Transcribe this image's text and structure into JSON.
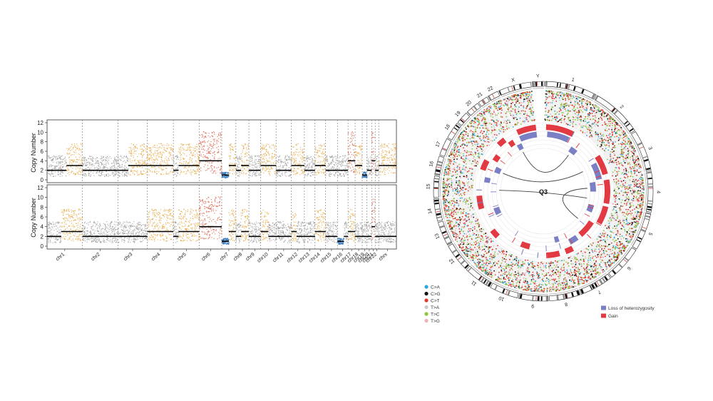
{
  "chart_data": [
    {
      "type": "scatter",
      "title": "",
      "ylabel": "Copy Number",
      "ylim": [
        0,
        12
      ],
      "yticks": [
        0,
        2,
        4,
        6,
        8,
        10,
        12
      ],
      "chromosomes": [
        "chr1",
        "chr2",
        "chr3",
        "chr4",
        "chr5",
        "chr6",
        "chr7",
        "chr8",
        "chr9",
        "chr10",
        "chr11",
        "chr12",
        "chr13",
        "chr14",
        "chr15",
        "chr16",
        "chr17",
        "chr18",
        "chr19",
        "chr20",
        "chr21",
        "chr22",
        "chrx"
      ],
      "chromosome_widths": [
        3.0,
        3.0,
        2.5,
        2.2,
        2.2,
        1.9,
        1.2,
        1.1,
        1.0,
        1.3,
        1.3,
        1.1,
        0.9,
        0.9,
        1.0,
        0.9,
        0.6,
        0.6,
        0.4,
        0.4,
        0.3,
        0.3,
        1.5
      ],
      "panels": [
        {
          "name": "top",
          "segments": [
            {
              "chr": "chr1",
              "start": 0,
              "end": 0.55,
              "cn": 2
            },
            {
              "chr": "chr1",
              "start": 0.55,
              "end": 1,
              "cn": 3
            },
            {
              "chr": "chr2",
              "start": 0,
              "end": 1,
              "cn": 2
            },
            {
              "chr": "chr3",
              "start": 0,
              "end": 0.35,
              "cn": 2
            },
            {
              "chr": "chr3",
              "start": 0.35,
              "end": 1,
              "cn": 3
            },
            {
              "chr": "chr4",
              "start": 0,
              "end": 1,
              "cn": 3
            },
            {
              "chr": "chr5",
              "start": 0,
              "end": 0.2,
              "cn": 2
            },
            {
              "chr": "chr5",
              "start": 0.2,
              "end": 1,
              "cn": 3
            },
            {
              "chr": "chr6",
              "start": 0,
              "end": 1,
              "cn": 4
            },
            {
              "chr": "chr7",
              "start": 0,
              "end": 0.5,
              "cn": 1
            },
            {
              "chr": "chr7",
              "start": 0.5,
              "end": 1,
              "cn": 3
            },
            {
              "chr": "chr8",
              "start": 0,
              "end": 0.4,
              "cn": 2
            },
            {
              "chr": "chr8",
              "start": 0.4,
              "end": 1,
              "cn": 3
            },
            {
              "chr": "chr9",
              "start": 0,
              "end": 1,
              "cn": 2
            },
            {
              "chr": "chr10",
              "start": 0,
              "end": 1,
              "cn": 3
            },
            {
              "chr": "chr11",
              "start": 0,
              "end": 1,
              "cn": 2
            },
            {
              "chr": "chr12",
              "start": 0,
              "end": 1,
              "cn": 3
            },
            {
              "chr": "chr13",
              "start": 0,
              "end": 1,
              "cn": 2
            },
            {
              "chr": "chr14",
              "start": 0,
              "end": 1,
              "cn": 3
            },
            {
              "chr": "chr15",
              "start": 0,
              "end": 1,
              "cn": 2
            },
            {
              "chr": "chr16",
              "start": 0,
              "end": 0.5,
              "cn": 2
            },
            {
              "chr": "chr16",
              "start": 0.5,
              "end": 1,
              "cn": 2
            },
            {
              "chr": "chr17",
              "start": 0,
              "end": 1,
              "cn": 4
            },
            {
              "chr": "chr18",
              "start": 0,
              "end": 1,
              "cn": 3
            },
            {
              "chr": "chr19",
              "start": 0,
              "end": 1,
              "cn": 1
            },
            {
              "chr": "chr20",
              "start": 0,
              "end": 1,
              "cn": 2
            },
            {
              "chr": "chr21",
              "start": 0,
              "end": 1,
              "cn": 4
            },
            {
              "chr": "chr22",
              "start": 0,
              "end": 1,
              "cn": 2
            },
            {
              "chr": "chrx",
              "start": 0,
              "end": 1,
              "cn": 3
            }
          ]
        },
        {
          "name": "bottom",
          "segments": [
            {
              "chr": "chr1",
              "start": 0,
              "end": 0.4,
              "cn": 2
            },
            {
              "chr": "chr1",
              "start": 0.4,
              "end": 1,
              "cn": 3
            },
            {
              "chr": "chr2",
              "start": 0,
              "end": 1,
              "cn": 2
            },
            {
              "chr": "chr3",
              "start": 0,
              "end": 1,
              "cn": 2
            },
            {
              "chr": "chr4",
              "start": 0,
              "end": 1,
              "cn": 3
            },
            {
              "chr": "chr5",
              "start": 0,
              "end": 0.2,
              "cn": 2
            },
            {
              "chr": "chr5",
              "start": 0.2,
              "end": 1,
              "cn": 3
            },
            {
              "chr": "chr6",
              "start": 0,
              "end": 1,
              "cn": 4
            },
            {
              "chr": "chr7",
              "start": 0,
              "end": 0.5,
              "cn": 1
            },
            {
              "chr": "chr7",
              "start": 0.5,
              "end": 1,
              "cn": 3
            },
            {
              "chr": "chr8",
              "start": 0,
              "end": 0.4,
              "cn": 2
            },
            {
              "chr": "chr8",
              "start": 0.4,
              "end": 1,
              "cn": 3
            },
            {
              "chr": "chr9",
              "start": 0,
              "end": 1,
              "cn": 2
            },
            {
              "chr": "chr10",
              "start": 0,
              "end": 0.5,
              "cn": 3
            },
            {
              "chr": "chr10",
              "start": 0.5,
              "end": 1,
              "cn": 2
            },
            {
              "chr": "chr11",
              "start": 0,
              "end": 1,
              "cn": 2
            },
            {
              "chr": "chr12",
              "start": 0,
              "end": 0.4,
              "cn": 3
            },
            {
              "chr": "chr12",
              "start": 0.4,
              "end": 1,
              "cn": 2
            },
            {
              "chr": "chr13",
              "start": 0,
              "end": 1,
              "cn": 2
            },
            {
              "chr": "chr14",
              "start": 0,
              "end": 1,
              "cn": 3
            },
            {
              "chr": "chr15",
              "start": 0,
              "end": 1,
              "cn": 2
            },
            {
              "chr": "chr16",
              "start": 0,
              "end": 0.6,
              "cn": 1
            },
            {
              "chr": "chr16",
              "start": 0.6,
              "end": 1,
              "cn": 2
            },
            {
              "chr": "chr17",
              "start": 0,
              "end": 1,
              "cn": 3
            },
            {
              "chr": "chr18",
              "start": 0,
              "end": 1,
              "cn": 2
            },
            {
              "chr": "chr19",
              "start": 0,
              "end": 1,
              "cn": 2
            },
            {
              "chr": "chr20",
              "start": 0,
              "end": 1,
              "cn": 2
            },
            {
              "chr": "chr21",
              "start": 0,
              "end": 1,
              "cn": 4
            },
            {
              "chr": "chr22",
              "start": 0,
              "end": 1,
              "cn": 2
            },
            {
              "chr": "chrx",
              "start": 0,
              "end": 1,
              "cn": 2
            }
          ]
        }
      ]
    },
    {
      "type": "circos",
      "center_label": "Q3",
      "ideogram_labels": [
        "1",
        "2",
        "3",
        "4",
        "5",
        "6",
        "7",
        "8",
        "9",
        "10",
        "11",
        "12",
        "13",
        "14",
        "15",
        "16",
        "17",
        "18",
        "19",
        "20",
        "21",
        "22",
        "X",
        "Y"
      ],
      "ideogram_sizes": [
        249,
        243,
        198,
        191,
        181,
        171,
        159,
        146,
        141,
        136,
        135,
        133,
        115,
        107,
        102,
        90,
        83,
        80,
        59,
        64,
        47,
        51,
        156,
        57
      ],
      "mutation_legend": [
        {
          "label": "C>A",
          "color": "#2aa7df"
        },
        {
          "label": "C>G",
          "color": "#111111"
        },
        {
          "label": "C>T",
          "color": "#e03a2f"
        },
        {
          "label": "T>A",
          "color": "#c9c9c9"
        },
        {
          "label": "T>C",
          "color": "#8cc63f"
        },
        {
          "label": "T>G",
          "color": "#eab4b8"
        }
      ],
      "cnv_legend": [
        {
          "label": "Loss of heterozygosity",
          "color": "#7b7fc4"
        },
        {
          "label": "Gain",
          "color": "#e23a43"
        }
      ],
      "cnv_events": [
        {
          "type": "gain",
          "chr": "1",
          "start": 0.05,
          "end": 0.95,
          "track": 1
        },
        {
          "type": "loh",
          "chr": "1",
          "start": 0.1,
          "end": 0.9,
          "track": 2
        },
        {
          "type": "loh",
          "chr": "2",
          "start": 0.1,
          "end": 0.4,
          "track": 3
        },
        {
          "type": "gain",
          "chr": "3",
          "start": 0.0,
          "end": 0.8,
          "track": 1
        },
        {
          "type": "loh",
          "chr": "3",
          "start": 0.2,
          "end": 0.95,
          "track": 2
        },
        {
          "type": "gain",
          "chr": "4",
          "start": 0.0,
          "end": 1.0,
          "track": 1
        },
        {
          "type": "loh",
          "chr": "4",
          "start": 0.0,
          "end": 0.5,
          "track": 3
        },
        {
          "type": "gain",
          "chr": "5",
          "start": 0.1,
          "end": 0.9,
          "track": 1
        },
        {
          "type": "loh",
          "chr": "5",
          "start": 0.2,
          "end": 0.6,
          "track": 3
        },
        {
          "type": "gain",
          "chr": "6",
          "start": 0.0,
          "end": 0.9,
          "track": 2
        },
        {
          "type": "loh",
          "chr": "7",
          "start": 0.1,
          "end": 0.6,
          "track": 2
        },
        {
          "type": "gain",
          "chr": "7",
          "start": 0.6,
          "end": 1.0,
          "track": 1
        },
        {
          "type": "gain",
          "chr": "8",
          "start": 0.3,
          "end": 1.0,
          "track": 1
        },
        {
          "type": "loh",
          "chr": "8",
          "start": 0.1,
          "end": 0.4,
          "track": 3
        },
        {
          "type": "gain",
          "chr": "10",
          "start": 0.0,
          "end": 0.6,
          "track": 2
        },
        {
          "type": "gain",
          "chr": "12",
          "start": 0.0,
          "end": 0.5,
          "track": 1
        },
        {
          "type": "loh",
          "chr": "13",
          "start": 0.2,
          "end": 0.8,
          "track": 3
        },
        {
          "type": "gain",
          "chr": "14",
          "start": 0.0,
          "end": 1.0,
          "track": 1
        },
        {
          "type": "loh",
          "chr": "16",
          "start": 0.0,
          "end": 0.5,
          "track": 2
        },
        {
          "type": "loh",
          "chr": "17",
          "start": 0.2,
          "end": 0.9,
          "track": 3
        },
        {
          "type": "gain",
          "chr": "17",
          "start": 0.0,
          "end": 1.0,
          "track": 1
        },
        {
          "type": "gain",
          "chr": "18",
          "start": 0.3,
          "end": 1.0,
          "track": 2
        },
        {
          "type": "gain",
          "chr": "20",
          "start": 0.0,
          "end": 1.0,
          "track": 1
        },
        {
          "type": "gain",
          "chr": "21",
          "start": 0.0,
          "end": 1.0,
          "track": 2
        },
        {
          "type": "loh",
          "chr": "22",
          "start": 0.0,
          "end": 1.0,
          "track": 3
        },
        {
          "type": "gain",
          "chr": "X",
          "start": 0.0,
          "end": 1.0,
          "track": 1
        },
        {
          "type": "loh",
          "chr": "X",
          "start": 0.0,
          "end": 1.0,
          "track": 2
        }
      ],
      "links": [
        {
          "from_chr": "17",
          "from_pos": 0.5,
          "to_chr": "3",
          "to_pos": 0.3
        },
        {
          "from_chr": "15",
          "from_pos": 0.4,
          "to_chr": "4",
          "to_pos": 0.9
        },
        {
          "from_chr": "22",
          "from_pos": 0.5,
          "to_chr": "2",
          "to_pos": 0.2
        },
        {
          "from_chr": "6",
          "from_pos": 0.3,
          "to_chr": "4",
          "to_pos": 0.3
        }
      ]
    }
  ]
}
